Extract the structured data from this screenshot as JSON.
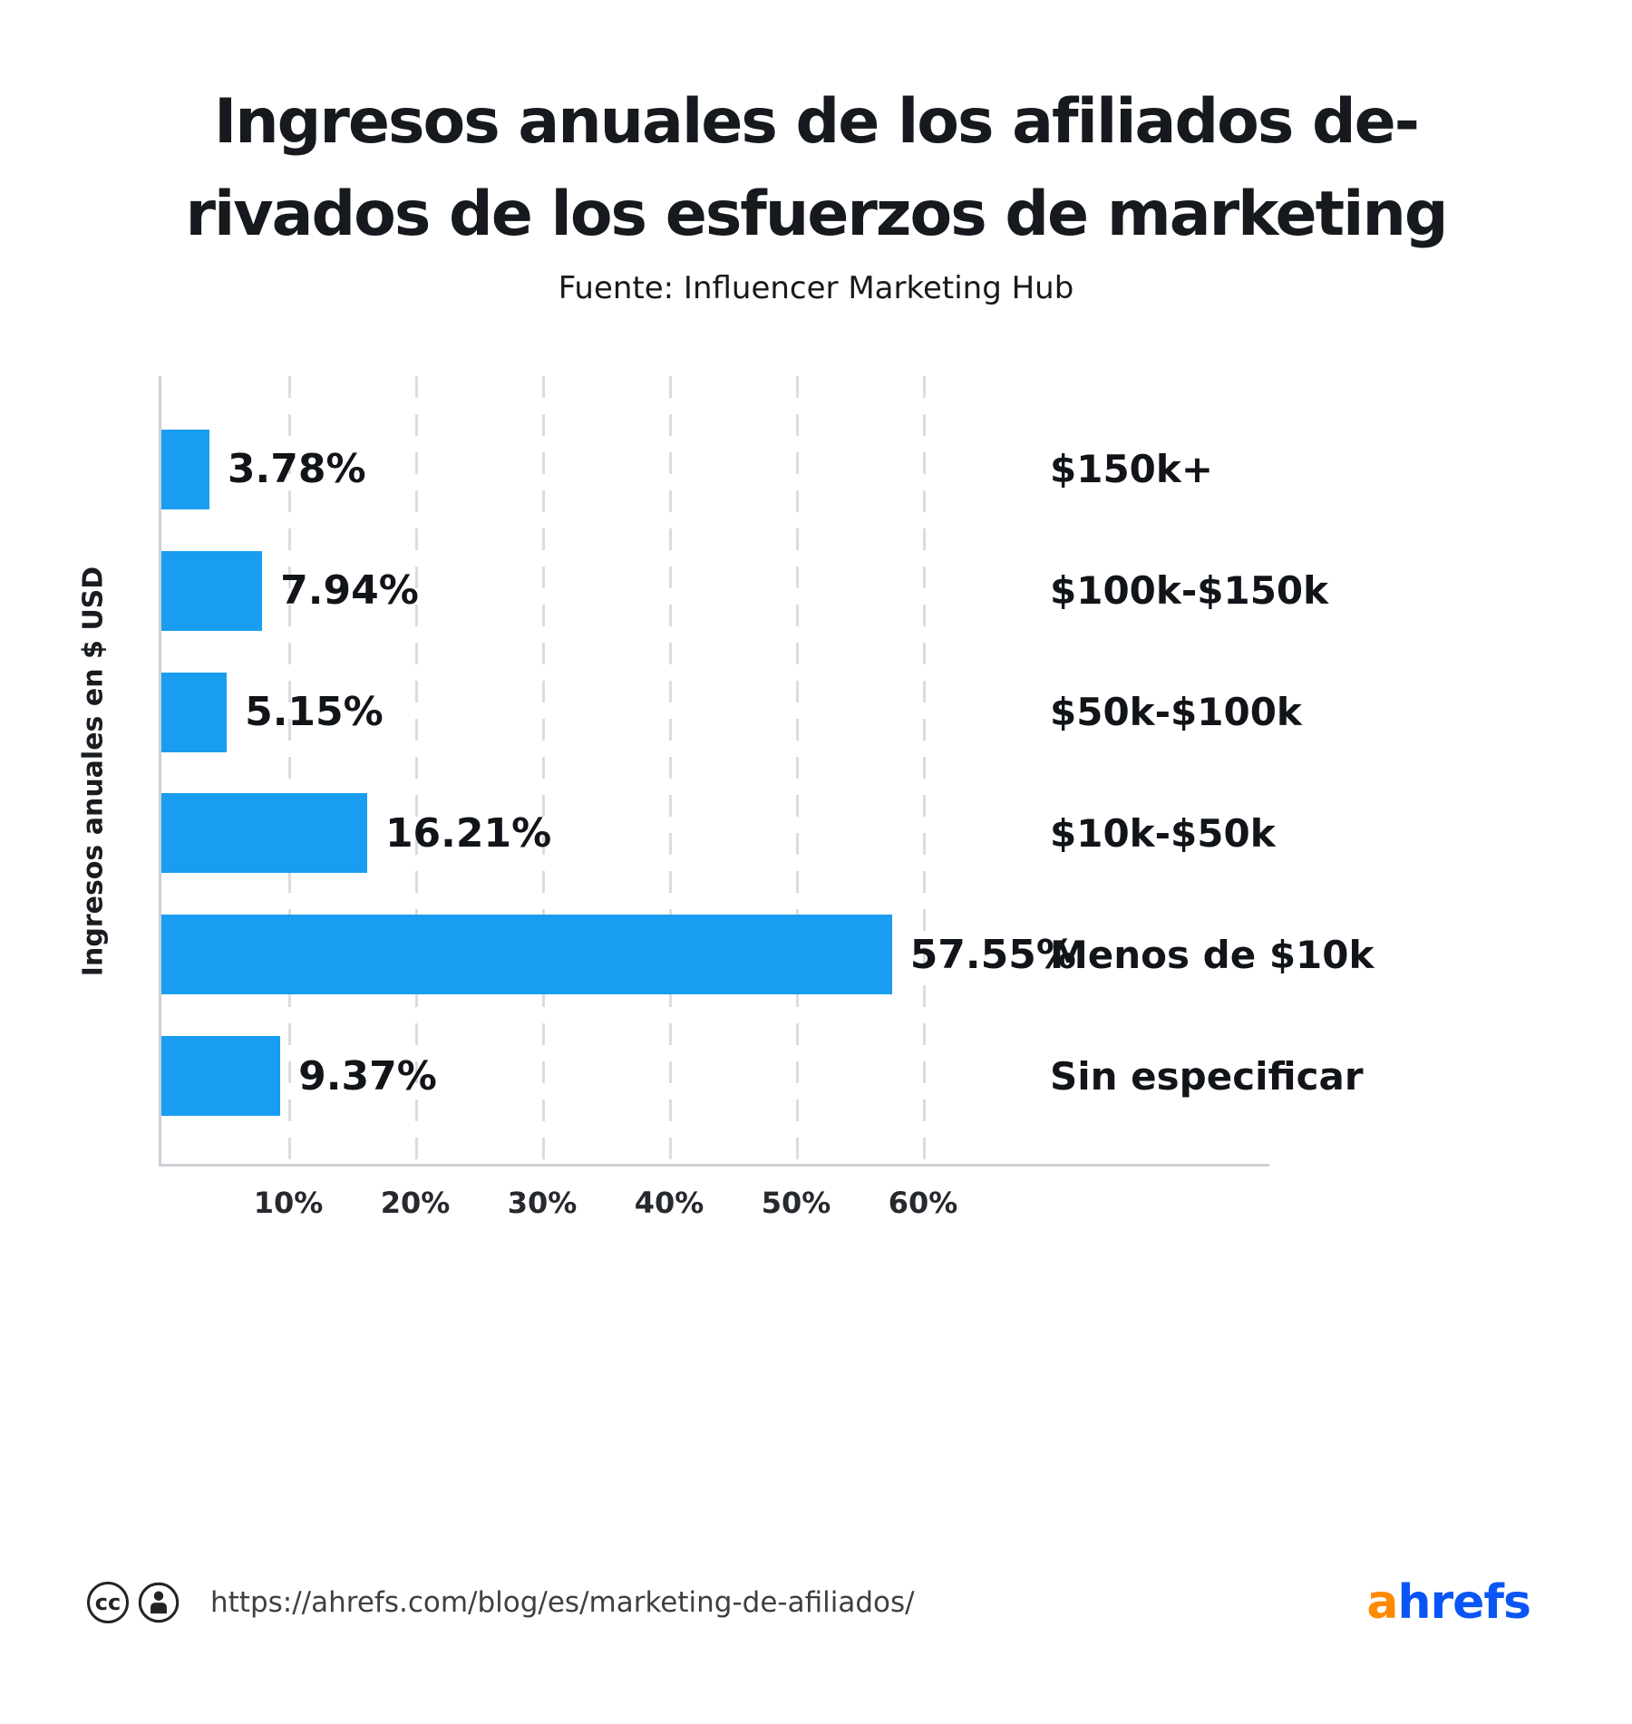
{
  "chart_data": {
    "type": "bar",
    "orientation": "horizontal",
    "title": "Ingresos anuales de los afiliados derivados de los esfuerzos de marketing",
    "title_lines": [
      "Ingresos anuales de los afiliados de-",
      "rivados de los esfuerzos de marketing"
    ],
    "subtitle": "Fuente: Influencer Marketing Hub",
    "ylabel": "Ingresos anuales en $ USD",
    "categories": [
      "$150k+",
      "$100k-$150k",
      "$50k-$100k",
      "$10k-$50k",
      "Menos de $10k",
      "Sin especificar"
    ],
    "values": [
      3.78,
      7.94,
      5.15,
      16.21,
      57.55,
      9.37
    ],
    "value_labels": [
      "3.78%",
      "7.94%",
      "5.15%",
      "16.21%",
      "57.55%",
      "9.37%"
    ],
    "x_tick_values": [
      10,
      20,
      30,
      40,
      50,
      60
    ],
    "x_tick_labels": [
      "10%",
      "20%",
      "30%",
      "40%",
      "50%",
      "60%"
    ],
    "xlim": [
      0,
      87.5
    ],
    "grid": "vertical-dashed",
    "legend": "none",
    "bar_color": "#199DF1",
    "gridline_color": "#DCDCDC",
    "axis_color": "#CBD0D5"
  },
  "footer": {
    "cc_text": "cc",
    "url": "https://ahrefs.com/blog/es/marketing-de-afiliados/",
    "logo": {
      "prefix": "a",
      "rest": "hrefs",
      "orange": "#FF8A00",
      "blue": "#0A55F6"
    }
  }
}
